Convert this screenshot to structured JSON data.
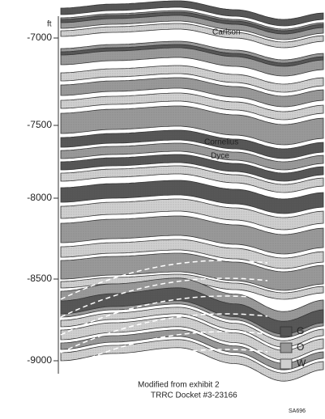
{
  "axis": {
    "unit": "ft",
    "ticks": [
      "-7000",
      "-7500",
      "-8000",
      "-8500",
      "-9000"
    ]
  },
  "labels": [
    "Carlson",
    "Cornelius",
    "Dyce"
  ],
  "legend": [
    {
      "label": "G",
      "color": "#555555"
    },
    {
      "label": "O",
      "color": "#999999"
    },
    {
      "label": "W",
      "color": "#d0d0d0"
    }
  ],
  "caption": {
    "line1": "Modified from exhibit 2",
    "line2": "TRRC Docket #3-23166"
  },
  "figure_id": "SA696"
}
